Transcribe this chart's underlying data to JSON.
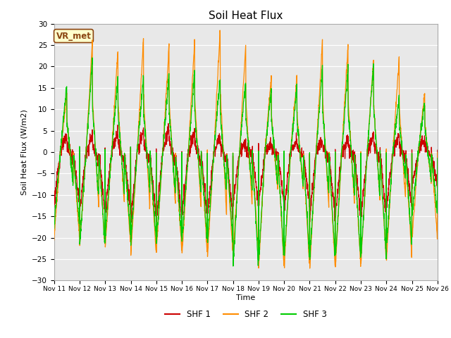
{
  "title": "Soil Heat Flux",
  "ylabel": "Soil Heat Flux (W/m2)",
  "xlabel": "Time",
  "ylim": [
    -30,
    30
  ],
  "yticks": [
    -30,
    -25,
    -20,
    -15,
    -10,
    -5,
    0,
    5,
    10,
    15,
    20,
    25,
    30
  ],
  "n_days": 15,
  "x_tick_labels": [
    "Nov 11",
    "Nov 12",
    "Nov 13",
    "Nov 14",
    "Nov 15",
    "Nov 16",
    "Nov 17",
    "Nov 18",
    "Nov 19",
    "Nov 20",
    "Nov 21",
    "Nov 22",
    "Nov 23",
    "Nov 24",
    "Nov 25",
    "Nov 26"
  ],
  "bg_color": "#e8e8e8",
  "fig_bg": "#ffffff",
  "line_colors": {
    "SHF 1": "#cc0000",
    "SHF 2": "#ff8c00",
    "SHF 3": "#00cc00"
  },
  "annotation_text": "VR_met",
  "annotation_bg": "#ffffcc",
  "annotation_border": "#8b4513",
  "pts_per_day": 144,
  "noise_scale": 0.8,
  "shf1_day_amps": [
    4,
    4,
    5,
    5,
    6,
    5,
    4,
    2,
    2,
    3,
    3,
    3,
    4,
    4,
    3
  ],
  "shf2_day_amps": [
    14,
    26,
    24,
    27,
    25,
    26,
    29,
    25,
    18,
    18,
    26,
    25,
    22,
    22,
    14
  ],
  "shf3_day_amps": [
    16,
    22,
    18,
    18,
    19,
    19,
    18,
    17,
    15,
    15,
    20,
    20,
    21,
    13,
    12
  ],
  "shf1_night_amps": [
    -12,
    -14,
    -14,
    -16,
    -16,
    -15,
    -15,
    -12,
    -12,
    -13,
    -15,
    -15,
    -15,
    -13,
    -8
  ],
  "shf2_night_amps": [
    -20,
    -22,
    -22,
    -24,
    -23,
    -24,
    -24,
    -24,
    -27,
    -27,
    -27,
    -27,
    -26,
    -25,
    -20
  ],
  "shf3_night_amps": [
    -17,
    -22,
    -20,
    -21,
    -21,
    -21,
    -21,
    -27,
    -25,
    -25,
    -25,
    -25,
    -25,
    -22,
    -15
  ]
}
